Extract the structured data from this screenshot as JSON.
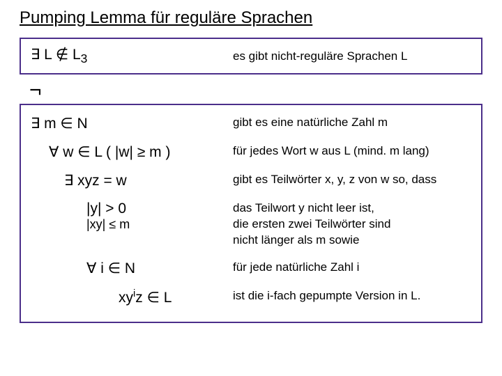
{
  "title": "Pumping Lemma für reguläre Sprachen",
  "top": {
    "formula": "∃ L ∉ L",
    "sub": "3",
    "text": "es gibt nicht-reguläre Sprachen L"
  },
  "neg": "¬",
  "rows": [
    {
      "indent": "ind1",
      "formula": "∃ m ∈ N",
      "text": "gibt es eine natürliche Zahl m"
    },
    {
      "indent": "ind2",
      "formula": "∀ w ∈ L ( |w| ≥ m )",
      "text": "für jedes Wort w aus L (mind. m lang)"
    },
    {
      "indent": "ind3",
      "formula": "∃ xyz = w",
      "text": "gibt es Teilwörter x, y, z von w so, dass"
    },
    {
      "indent": "ind4",
      "formula": "|y| > 0",
      "formula2": "|xy| ≤ m",
      "text": "das Teilwort y nicht leer ist,\ndie ersten zwei Teilwörter sind\nnicht länger als m  sowie"
    },
    {
      "indent": "ind5",
      "formula": "∀ i ∈ N",
      "text": "für jede natürliche Zahl i"
    },
    {
      "indent": "ind6",
      "formula_html": "xy<sup>i</sup>z ∈ L",
      "formula": "xy",
      "sup": "i",
      "tail": "z ∈ L",
      "text": "ist die i-fach gepumpte Version in L."
    }
  ],
  "colors": {
    "border": "#4b2e8a",
    "text": "#000000",
    "background": "#ffffff"
  },
  "fontsizes": {
    "title": 24,
    "formula": 21,
    "explain": 17
  }
}
